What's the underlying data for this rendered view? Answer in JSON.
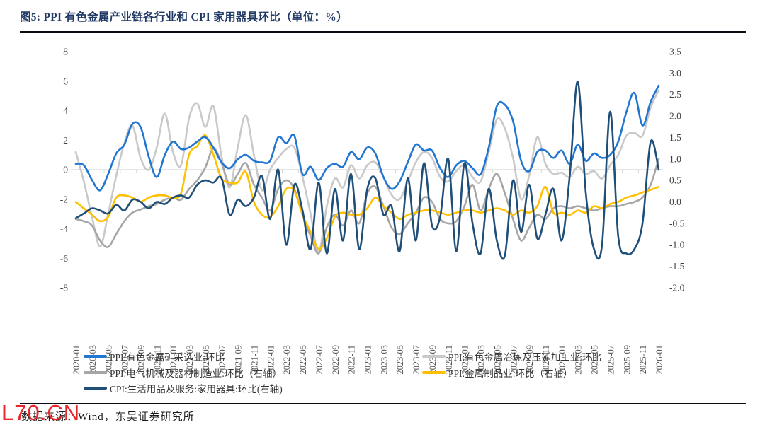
{
  "title": "图5:  PPI 有色金属产业链各行业和 CPI 家用器具环比（单位：%）",
  "footer": {
    "source_label": "数据来源：Wind，东吴证券研究所",
    "watermark": "L70.CN"
  },
  "chart_data": {
    "type": "line",
    "grid": "zero-line-only",
    "legend_position": "bottom-two-columns",
    "left_axis": {
      "min": -8,
      "max": 8,
      "step": 2,
      "ticks": [
        "8",
        "6",
        "4",
        "2",
        "0",
        "-2",
        "-4",
        "-6",
        "-8"
      ]
    },
    "right_axis": {
      "min": -2.0,
      "max": 3.5,
      "step": 0.5,
      "ticks": [
        "3.5",
        "3.0",
        "2.5",
        "2.0",
        "1.5",
        "1.0",
        "0.5",
        "0.0",
        "-0.5",
        "-1.0",
        "-1.5",
        "-2.0"
      ]
    },
    "x_ticks": [
      "2020-01",
      "2020-03",
      "2020-05",
      "2020-07",
      "2020-09",
      "2020-11",
      "2021-01",
      "2021-03",
      "2021-05",
      "2021-07",
      "2021-09",
      "2021-11",
      "2022-01",
      "2022-03",
      "2022-05",
      "2022-07",
      "2022-09",
      "2022-11",
      "2023-01",
      "2023-03",
      "2023-05",
      "2023-07",
      "2023-09",
      "2023-11",
      "2024-01",
      "2024-03",
      "2024-05",
      "2024-07",
      "2024-09",
      "2024-11",
      "2025-01",
      "2025-03",
      "2025-05",
      "2025-07",
      "2025-09",
      "2025-11",
      "2026-01"
    ],
    "months_span": {
      "start": "2020-01",
      "end": "2026-01",
      "count": 73
    },
    "series": [
      {
        "name": "PPI:有色金属矿采选业:环比",
        "axis": "left",
        "color": "#2176D2",
        "values": [
          0.4,
          0.3,
          -0.7,
          -1.4,
          -0.3,
          1.1,
          1.7,
          3.1,
          2.9,
          0.9,
          -0.5,
          1.0,
          1.9,
          1.4,
          1.5,
          1.9,
          2.2,
          1.5,
          0.5,
          0.1,
          0.7,
          1.0,
          0.6,
          0.5,
          0.6,
          2.2,
          1.8,
          2.3,
          -0.3,
          0.2,
          -0.7,
          0.1,
          0.4,
          0.2,
          1.2,
          0.7,
          1.5,
          1.1,
          -0.5,
          -1.3,
          -0.8,
          0.5,
          1.7,
          1.3,
          1.3,
          0.1,
          -0.5,
          0.3,
          0.6,
          0.1,
          -0.3,
          1.5,
          4.3,
          4.4,
          3.3,
          0.6,
          -0.1,
          1.2,
          1.3,
          0.8,
          1.3,
          0.4,
          1.7,
          0.6,
          1.1,
          0.8,
          1.0,
          1.9,
          3.9,
          5.2,
          3.0,
          4.6,
          5.7
        ]
      },
      {
        "name": "PPI:有色金属冶炼及压延加工业:环比",
        "axis": "left",
        "color": "#C9C9C9",
        "values": [
          1.2,
          -0.8,
          -3.2,
          -5.2,
          -3.0,
          -0.4,
          1.8,
          3.0,
          0.8,
          0.0,
          1.5,
          3.8,
          1.2,
          0.3,
          3.5,
          4.5,
          2.9,
          4.3,
          0.9,
          -1.2,
          1.5,
          3.7,
          1.0,
          -1.4,
          0.0,
          0.8,
          1.4,
          1.5,
          -0.5,
          -3.0,
          -5.6,
          -2.5,
          -0.6,
          -1.2,
          0.3,
          -0.6,
          0.3,
          0.5,
          -0.5,
          -1.7,
          -2.0,
          -0.8,
          0.5,
          1.2,
          0.8,
          -0.5,
          -0.8,
          -0.1,
          0.3,
          -0.5,
          -0.8,
          1.2,
          3.4,
          2.8,
          0.8,
          -2.0,
          -0.4,
          2.2,
          0.4,
          -0.3,
          -0.2,
          -0.5,
          0.2,
          -0.3,
          -0.1,
          -0.6,
          0.3,
          1.0,
          2.3,
          2.5,
          2.3,
          4.2,
          5.4
        ]
      },
      {
        "name": "PPI:电气机械及器材制造业:环比（右轴）",
        "axis": "right",
        "color": "#A6A6A6",
        "values": [
          -0.4,
          -0.45,
          -0.55,
          -0.9,
          -1.05,
          -0.75,
          -0.45,
          -0.25,
          -0.18,
          -0.1,
          -0.05,
          0.05,
          0.1,
          0.05,
          0.3,
          0.5,
          0.8,
          1.25,
          0.9,
          0.4,
          0.65,
          0.9,
          0.4,
          0.1,
          -0.2,
          0.3,
          0.5,
          0.3,
          -0.3,
          -0.8,
          -1.2,
          -0.6,
          -0.3,
          -0.55,
          -0.2,
          -0.5,
          0.2,
          0.35,
          -0.1,
          -0.6,
          -0.75,
          -0.5,
          -0.25,
          0.1,
          0.0,
          -0.4,
          -0.5,
          -0.45,
          -0.1,
          0.4,
          -0.2,
          0.3,
          0.65,
          0.2,
          -0.4,
          -0.9,
          -0.6,
          -0.3,
          -0.4,
          -0.15,
          -0.1,
          -0.15,
          -0.1,
          -0.15,
          -0.2,
          -0.15,
          -0.1,
          -0.1,
          -0.05,
          0.0,
          0.1,
          0.4,
          1.0
        ]
      },
      {
        "name": "PPI:金属制品业:环比（右轴）",
        "axis": "right",
        "color": "#FFC000",
        "values": [
          0.0,
          -0.15,
          -0.3,
          -0.45,
          -0.35,
          0.1,
          0.15,
          0.1,
          0.0,
          0.1,
          0.15,
          0.15,
          0.1,
          0.2,
          1.1,
          1.3,
          1.55,
          1.1,
          0.55,
          0.45,
          0.45,
          0.7,
          0.0,
          -0.3,
          -0.35,
          -0.1,
          0.3,
          0.25,
          -0.3,
          -0.7,
          -1.1,
          -0.85,
          -0.35,
          -0.25,
          -0.3,
          -0.3,
          -0.15,
          0.1,
          -0.1,
          -0.25,
          -0.4,
          -0.3,
          -0.25,
          -0.2,
          -0.2,
          -0.25,
          -0.3,
          -0.25,
          -0.2,
          -0.2,
          -0.25,
          -0.2,
          -0.15,
          -0.2,
          -0.3,
          -0.2,
          -0.25,
          -0.1,
          0.35,
          -0.25,
          -0.25,
          -0.3,
          -0.2,
          -0.25,
          -0.1,
          -0.15,
          -0.05,
          0.0,
          0.1,
          0.15,
          0.22,
          0.28,
          0.35
        ]
      },
      {
        "name": "CPI:生活用品及服务:家用器具:环比(右轴)",
        "axis": "right",
        "color": "#1F4E79",
        "values": [
          -0.38,
          -0.27,
          -0.15,
          -0.2,
          -0.27,
          -0.07,
          -0.2,
          0.05,
          0.0,
          -0.15,
          0.0,
          -0.05,
          0.1,
          0.15,
          0.1,
          0.4,
          0.5,
          0.45,
          0.55,
          -0.3,
          0.05,
          -0.1,
          0.1,
          0.6,
          -0.4,
          0.75,
          -1.0,
          0.4,
          -0.2,
          -1.1,
          0.45,
          -1.2,
          0.3,
          -0.9,
          0.65,
          -1.1,
          0.3,
          0.55,
          -0.3,
          -0.1,
          -1.15,
          0.55,
          -0.9,
          0.9,
          -0.55,
          -0.35,
          1.0,
          -1.15,
          0.9,
          -0.5,
          -1.2,
          0.3,
          -0.9,
          -1.25,
          0.5,
          -0.7,
          0.4,
          -0.85,
          -0.3,
          0.3,
          -0.9,
          0.6,
          2.8,
          0.2,
          -1.1,
          -1.0,
          2.1,
          -0.8,
          -1.2,
          -1.1,
          -0.5,
          1.4,
          0.75
        ]
      }
    ],
    "legend_columns": [
      [
        0,
        2,
        4
      ],
      [
        1,
        3
      ]
    ],
    "draw_order": [
      1,
      2,
      3,
      0,
      4
    ],
    "colors": {
      "zero_line": "#D6D6D6",
      "axis_text": "#404040",
      "x_tick_text": "#595959",
      "title": "#1F3864",
      "rule": "#0c0c14",
      "watermark_red": "#e8252a"
    }
  }
}
